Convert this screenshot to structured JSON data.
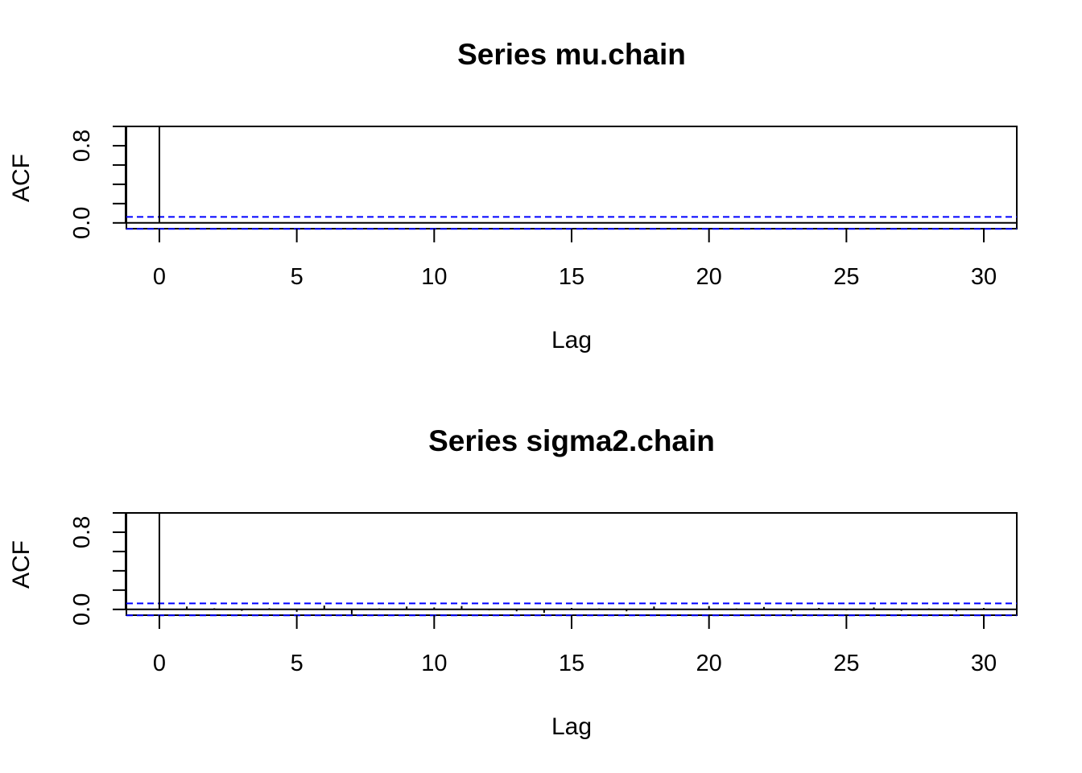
{
  "colors": {
    "axis": "#000000",
    "bar": "#000000",
    "confidence": "#0000ff",
    "background": "#ffffff"
  },
  "chart_data": [
    {
      "type": "bar",
      "title": "Series  mu.chain",
      "xlabel": "Lag",
      "ylabel": "ACF",
      "xlim": [
        -1.2,
        31.2
      ],
      "ylim": [
        -0.06,
        1.0
      ],
      "x_ticks": [
        0,
        5,
        10,
        15,
        20,
        25,
        30
      ],
      "x_tick_labels": [
        "0",
        "5",
        "10",
        "15",
        "20",
        "25",
        "30"
      ],
      "y_ticks": [
        0.0,
        0.2,
        0.4,
        0.6,
        0.8,
        1.0
      ],
      "y_tick_labels": [
        "0.0",
        "0.8"
      ],
      "confidence_bound": 0.062,
      "lags": [
        0,
        1,
        2,
        3,
        4,
        5,
        6,
        7,
        8,
        9,
        10,
        11,
        12,
        13,
        14,
        15,
        16,
        17,
        18,
        19,
        20,
        21,
        22,
        23,
        24,
        25,
        26,
        27,
        28,
        29,
        30
      ],
      "values": [
        1.0,
        0.005,
        -0.004,
        0.003,
        -0.002,
        0.004,
        0.002,
        -0.003,
        0.003,
        -0.002,
        0.002,
        0.003,
        -0.003,
        0.006,
        0.002,
        -0.002,
        0.003,
        0.005,
        -0.002,
        0.003,
        -0.004,
        0.002,
        0.003,
        -0.002,
        0.002,
        -0.003,
        0.002,
        0.004,
        -0.002,
        0.003,
        0.002
      ]
    },
    {
      "type": "bar",
      "title": "Series  sigma2.chain",
      "xlabel": "Lag",
      "ylabel": "ACF",
      "xlim": [
        -1.2,
        31.2
      ],
      "ylim": [
        -0.06,
        1.0
      ],
      "x_ticks": [
        0,
        5,
        10,
        15,
        20,
        25,
        30
      ],
      "x_tick_labels": [
        "0",
        "5",
        "10",
        "15",
        "20",
        "25",
        "30"
      ],
      "y_ticks": [
        0.0,
        0.2,
        0.4,
        0.6,
        0.8,
        1.0
      ],
      "y_tick_labels": [
        "0.0",
        "0.8"
      ],
      "confidence_bound": 0.062,
      "lags": [
        0,
        1,
        2,
        3,
        4,
        5,
        6,
        7,
        8,
        9,
        10,
        11,
        12,
        13,
        14,
        15,
        16,
        17,
        18,
        19,
        20,
        21,
        22,
        23,
        24,
        25,
        26,
        27,
        28,
        29,
        30
      ],
      "values": [
        1.0,
        0.03,
        0.012,
        -0.015,
        0.012,
        -0.025,
        0.04,
        -0.05,
        0.01,
        0.03,
        0.02,
        0.035,
        -0.01,
        -0.02,
        -0.035,
        0.015,
        0.01,
        -0.02,
        0.03,
        0.005,
        0.035,
        0.01,
        0.025,
        -0.02,
        0.015,
        -0.01,
        0.02,
        -0.015,
        0.01,
        -0.02,
        0.015
      ]
    }
  ]
}
